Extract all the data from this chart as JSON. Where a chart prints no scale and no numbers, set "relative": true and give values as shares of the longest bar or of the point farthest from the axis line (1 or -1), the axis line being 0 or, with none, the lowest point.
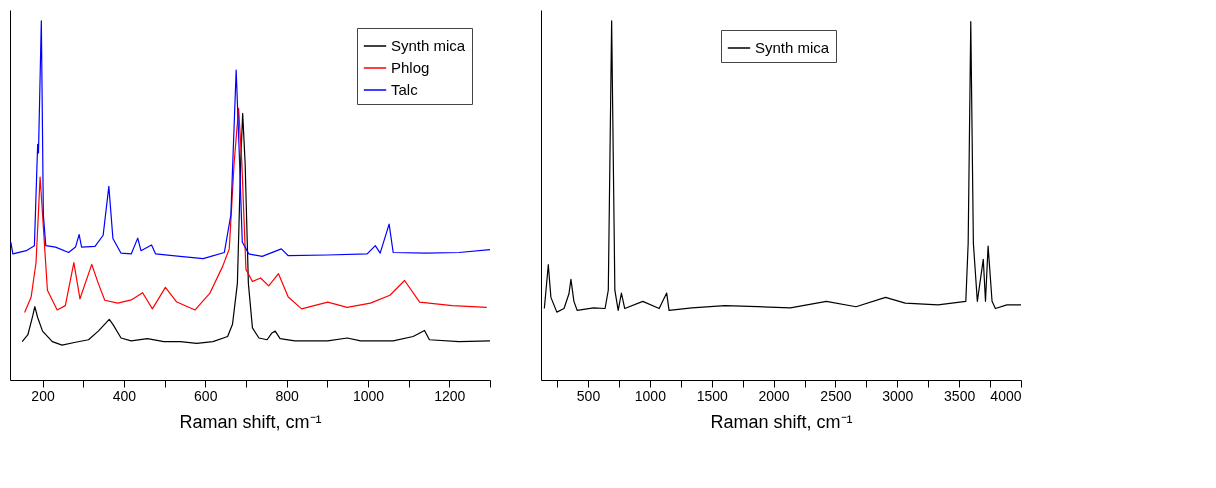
{
  "chart_data": [
    {
      "type": "line",
      "relative": true,
      "xlabel": "Raman shift, cm⁻¹",
      "legend": "top right",
      "xlim": [
        120,
        1300
      ],
      "xticks": [
        200,
        {
          "value": 300,
          "label": null
        },
        400,
        {
          "value": 500,
          "label": null
        },
        600,
        {
          "value": 700,
          "label": null
        },
        800,
        {
          "value": 900,
          "label": null
        },
        1000,
        {
          "value": 1100,
          "label": null
        },
        1200,
        {
          "value": 1300,
          "label": null
        }
      ],
      "series": [
        {
          "name": "Synth mica",
          "color": "#000000",
          "x": [
            150,
            164,
            176,
            181,
            188,
            200,
            224,
            248,
            281,
            313,
            337,
            364,
            373,
            393,
            418,
            458,
            498,
            539,
            579,
            619,
            655,
            667,
            679,
            687,
            692,
            698,
            706,
            716,
            732,
            752,
            764,
            772,
            784,
            820,
            901,
            949,
            982,
            1062,
            1111,
            1139,
            1151,
            1224,
            1300
          ],
          "values": [
            0.107,
            0.126,
            0.179,
            0.204,
            0.174,
            0.136,
            0.107,
            0.097,
            0.105,
            0.112,
            0.136,
            0.169,
            0.155,
            0.117,
            0.109,
            0.115,
            0.107,
            0.107,
            0.102,
            0.107,
            0.121,
            0.155,
            0.269,
            0.604,
            0.742,
            0.604,
            0.269,
            0.145,
            0.117,
            0.112,
            0.131,
            0.136,
            0.115,
            0.109,
            0.109,
            0.117,
            0.109,
            0.109,
            0.121,
            0.138,
            0.112,
            0.107,
            0.109
          ]
        },
        {
          "name": "Phlog",
          "color": "#ff0000",
          "x": [
            156,
            172,
            184,
            194,
            200,
            212,
            236,
            256,
            277,
            292,
            321,
            337,
            353,
            385,
            418,
            446,
            470,
            502,
            530,
            575,
            611,
            643,
            659,
            671,
            682,
            690,
            700,
            716,
            736,
            756,
            780,
            804,
            837,
            901,
            949,
            1006,
            1054,
            1090,
            1127,
            1207,
            1292
          ],
          "values": [
            0.188,
            0.231,
            0.327,
            0.565,
            0.46,
            0.25,
            0.195,
            0.207,
            0.327,
            0.226,
            0.322,
            0.269,
            0.222,
            0.214,
            0.223,
            0.243,
            0.198,
            0.258,
            0.217,
            0.195,
            0.241,
            0.317,
            0.365,
            0.604,
            0.756,
            0.604,
            0.308,
            0.274,
            0.284,
            0.262,
            0.296,
            0.231,
            0.198,
            0.217,
            0.202,
            0.214,
            0.236,
            0.277,
            0.217,
            0.207,
            0.202
          ]
        },
        {
          "name": "Talc",
          "color": "#0000ff",
          "x": [
            122,
            127,
            160,
            180,
            188,
            190,
            197,
            202,
            208,
            232,
            264,
            281,
            290,
            296,
            329,
            349,
            363,
            373,
            393,
            418,
            434,
            442,
            468,
            478,
            538,
            595,
            647,
            663,
            676,
            683,
            691,
            707,
            740,
            787,
            804,
            901,
            998,
            1018,
            1030,
            1052,
            1062,
            1143,
            1224,
            1300
          ],
          "values": [
            0.384,
            0.351,
            0.36,
            0.374,
            0.656,
            0.632,
            1.0,
            0.46,
            0.374,
            0.37,
            0.355,
            0.37,
            0.405,
            0.37,
            0.372,
            0.403,
            0.539,
            0.394,
            0.353,
            0.351,
            0.395,
            0.36,
            0.376,
            0.351,
            0.344,
            0.338,
            0.355,
            0.46,
            0.863,
            0.651,
            0.384,
            0.351,
            0.344,
            0.365,
            0.346,
            0.348,
            0.351,
            0.374,
            0.353,
            0.434,
            0.355,
            0.353,
            0.355,
            0.363
          ]
        }
      ]
    },
    {
      "type": "line",
      "relative": true,
      "xlabel": "Raman shift, cm⁻¹",
      "legend": "top",
      "xlim": [
        120,
        4000
      ],
      "xticks": [
        {
          "value": 250,
          "label": null
        },
        500,
        {
          "value": 750,
          "label": null
        },
        1000,
        {
          "value": 1250,
          "label": null
        },
        1500,
        {
          "value": 1750,
          "label": null
        },
        2000,
        {
          "value": 2250,
          "label": null
        },
        2500,
        {
          "value": 2750,
          "label": null
        },
        3000,
        {
          "value": 3250,
          "label": null
        },
        3500,
        {
          "value": 3750,
          "label": null
        },
        4000
      ],
      "series": [
        {
          "name": "Synth mica",
          "color": "#000000",
          "x": [
            147,
            179,
            200,
            248,
            306,
            346,
            362,
            386,
            412,
            545,
            638,
            664,
            691,
            717,
            744,
            770,
            797,
            943,
            1075,
            1136,
            1155,
            1340,
            1606,
            1871,
            2136,
            2427,
            2666,
            2905,
            3064,
            3329,
            3554,
            3573,
            3594,
            3615,
            3647,
            3695,
            3713,
            3734,
            3766,
            3793,
            3886,
            4000
          ],
          "values": [
            0.199,
            0.321,
            0.23,
            0.189,
            0.199,
            0.24,
            0.28,
            0.219,
            0.194,
            0.201,
            0.199,
            0.25,
            1.0,
            0.25,
            0.194,
            0.242,
            0.199,
            0.219,
            0.199,
            0.242,
            0.194,
            0.201,
            0.207,
            0.204,
            0.201,
            0.219,
            0.204,
            0.23,
            0.214,
            0.209,
            0.219,
            0.381,
            0.998,
            0.381,
            0.219,
            0.336,
            0.219,
            0.373,
            0.219,
            0.199,
            0.209,
            0.209
          ]
        }
      ]
    }
  ]
}
